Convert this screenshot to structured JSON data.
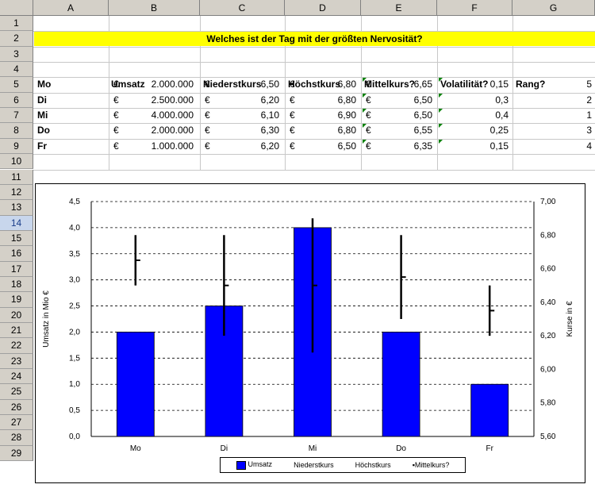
{
  "columns": [
    "A",
    "B",
    "C",
    "D",
    "E",
    "F",
    "G"
  ],
  "rows": [
    "1",
    "2",
    "3",
    "4",
    "5",
    "6",
    "7",
    "8",
    "9",
    "10",
    "11",
    "12",
    "13",
    "14",
    "15",
    "16",
    "17",
    "18",
    "19",
    "20",
    "21",
    "22",
    "23",
    "24",
    "25",
    "26",
    "27",
    "28",
    "29"
  ],
  "selected_row": "14",
  "title": "Welches ist der Tag mit der größten Nervosität?",
  "headers": {
    "umsatz": "Umsatz",
    "niederstkurs": "Niederstkurs",
    "hoechstkurs": "Höchstkurs",
    "mittelkurs": "Mittelkurs?",
    "volatilitaet": "Volatilität?",
    "rang": "Rang?"
  },
  "currency": "€",
  "table": [
    {
      "day": "Mo",
      "umsatz": "2.000.000",
      "nieder": "6,50",
      "hoch": "6,80",
      "mittel": "6,65",
      "vol": "0,15",
      "rang": "5"
    },
    {
      "day": "Di",
      "umsatz": "2.500.000",
      "nieder": "6,20",
      "hoch": "6,80",
      "mittel": "6,50",
      "vol": "0,3",
      "rang": "2"
    },
    {
      "day": "Mi",
      "umsatz": "4.000.000",
      "nieder": "6,10",
      "hoch": "6,90",
      "mittel": "6,50",
      "vol": "0,4",
      "rang": "1"
    },
    {
      "day": "Do",
      "umsatz": "2.000.000",
      "nieder": "6,30",
      "hoch": "6,80",
      "mittel": "6,55",
      "vol": "0,25",
      "rang": "3"
    },
    {
      "day": "Fr",
      "umsatz": "1.000.000",
      "nieder": "6,20",
      "hoch": "6,50",
      "mittel": "6,35",
      "vol": "0,15",
      "rang": "4"
    }
  ],
  "chart_data": {
    "type": "bar",
    "categories": [
      "Mo",
      "Di",
      "Mi",
      "Do",
      "Fr"
    ],
    "series": [
      {
        "name": "Umsatz",
        "axis": "left",
        "kind": "bar",
        "values": [
          2.0,
          2.5,
          4.0,
          2.0,
          1.0
        ],
        "color": "#0000ff"
      },
      {
        "name": "Niederstkurs",
        "axis": "right",
        "kind": "stock-low",
        "values": [
          6.5,
          6.2,
          6.1,
          6.3,
          6.2
        ]
      },
      {
        "name": "Höchstkurs",
        "axis": "right",
        "kind": "stock-high",
        "values": [
          6.8,
          6.8,
          6.9,
          6.8,
          6.5
        ]
      },
      {
        "name": "Mittelkurs?",
        "axis": "right",
        "kind": "stock-mid",
        "values": [
          6.65,
          6.5,
          6.5,
          6.55,
          6.35
        ]
      }
    ],
    "ylabel": "Umsatz in Mio €",
    "y2label": "Kurse in €",
    "ylim": [
      0,
      4.5
    ],
    "y2lim": [
      5.6,
      7.0
    ],
    "yticks": [
      "0,0",
      "0,5",
      "1,0",
      "1,5",
      "2,0",
      "2,5",
      "3,0",
      "3,5",
      "4,0",
      "4,5"
    ],
    "y2ticks": [
      "5,60",
      "5,80",
      "6,00",
      "6,20",
      "6,40",
      "6,60",
      "6,80",
      "7,00"
    ],
    "grid": true,
    "legend_position": "bottom",
    "legend": [
      "Umsatz",
      "Niederstkurs",
      "Höchstkurs",
      "Mittelkurs?"
    ]
  }
}
